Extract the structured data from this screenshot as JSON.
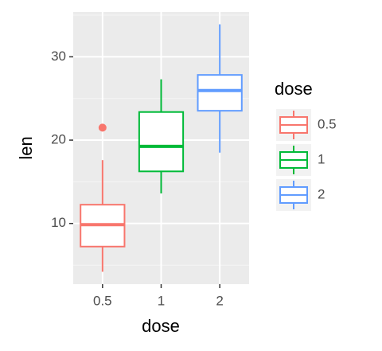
{
  "chart_data": {
    "type": "box",
    "x_label": "dose",
    "y_label": "len",
    "categories": [
      "0.5",
      "1",
      "2"
    ],
    "boxes": [
      {
        "min": 4.2,
        "q1": 7.225,
        "median": 9.85,
        "q3": 12.25,
        "max": 17.6,
        "outliers": [
          21.5
        ]
      },
      {
        "min": 13.6,
        "q1": 16.25,
        "median": 19.25,
        "q3": 23.375,
        "max": 27.3,
        "outliers": []
      },
      {
        "min": 18.5,
        "q1": 23.525,
        "median": 25.95,
        "q3": 27.825,
        "max": 33.9,
        "outliers": []
      }
    ],
    "colors": [
      "#F8766D",
      "#00BA38",
      "#619CFF"
    ],
    "ylim": [
      2.715,
      35.385
    ],
    "yticks": [
      10,
      20,
      30
    ],
    "minor_yticks": [
      5,
      15,
      25,
      35
    ],
    "grid": true,
    "legend_title": "dose",
    "legend_position": "right"
  }
}
